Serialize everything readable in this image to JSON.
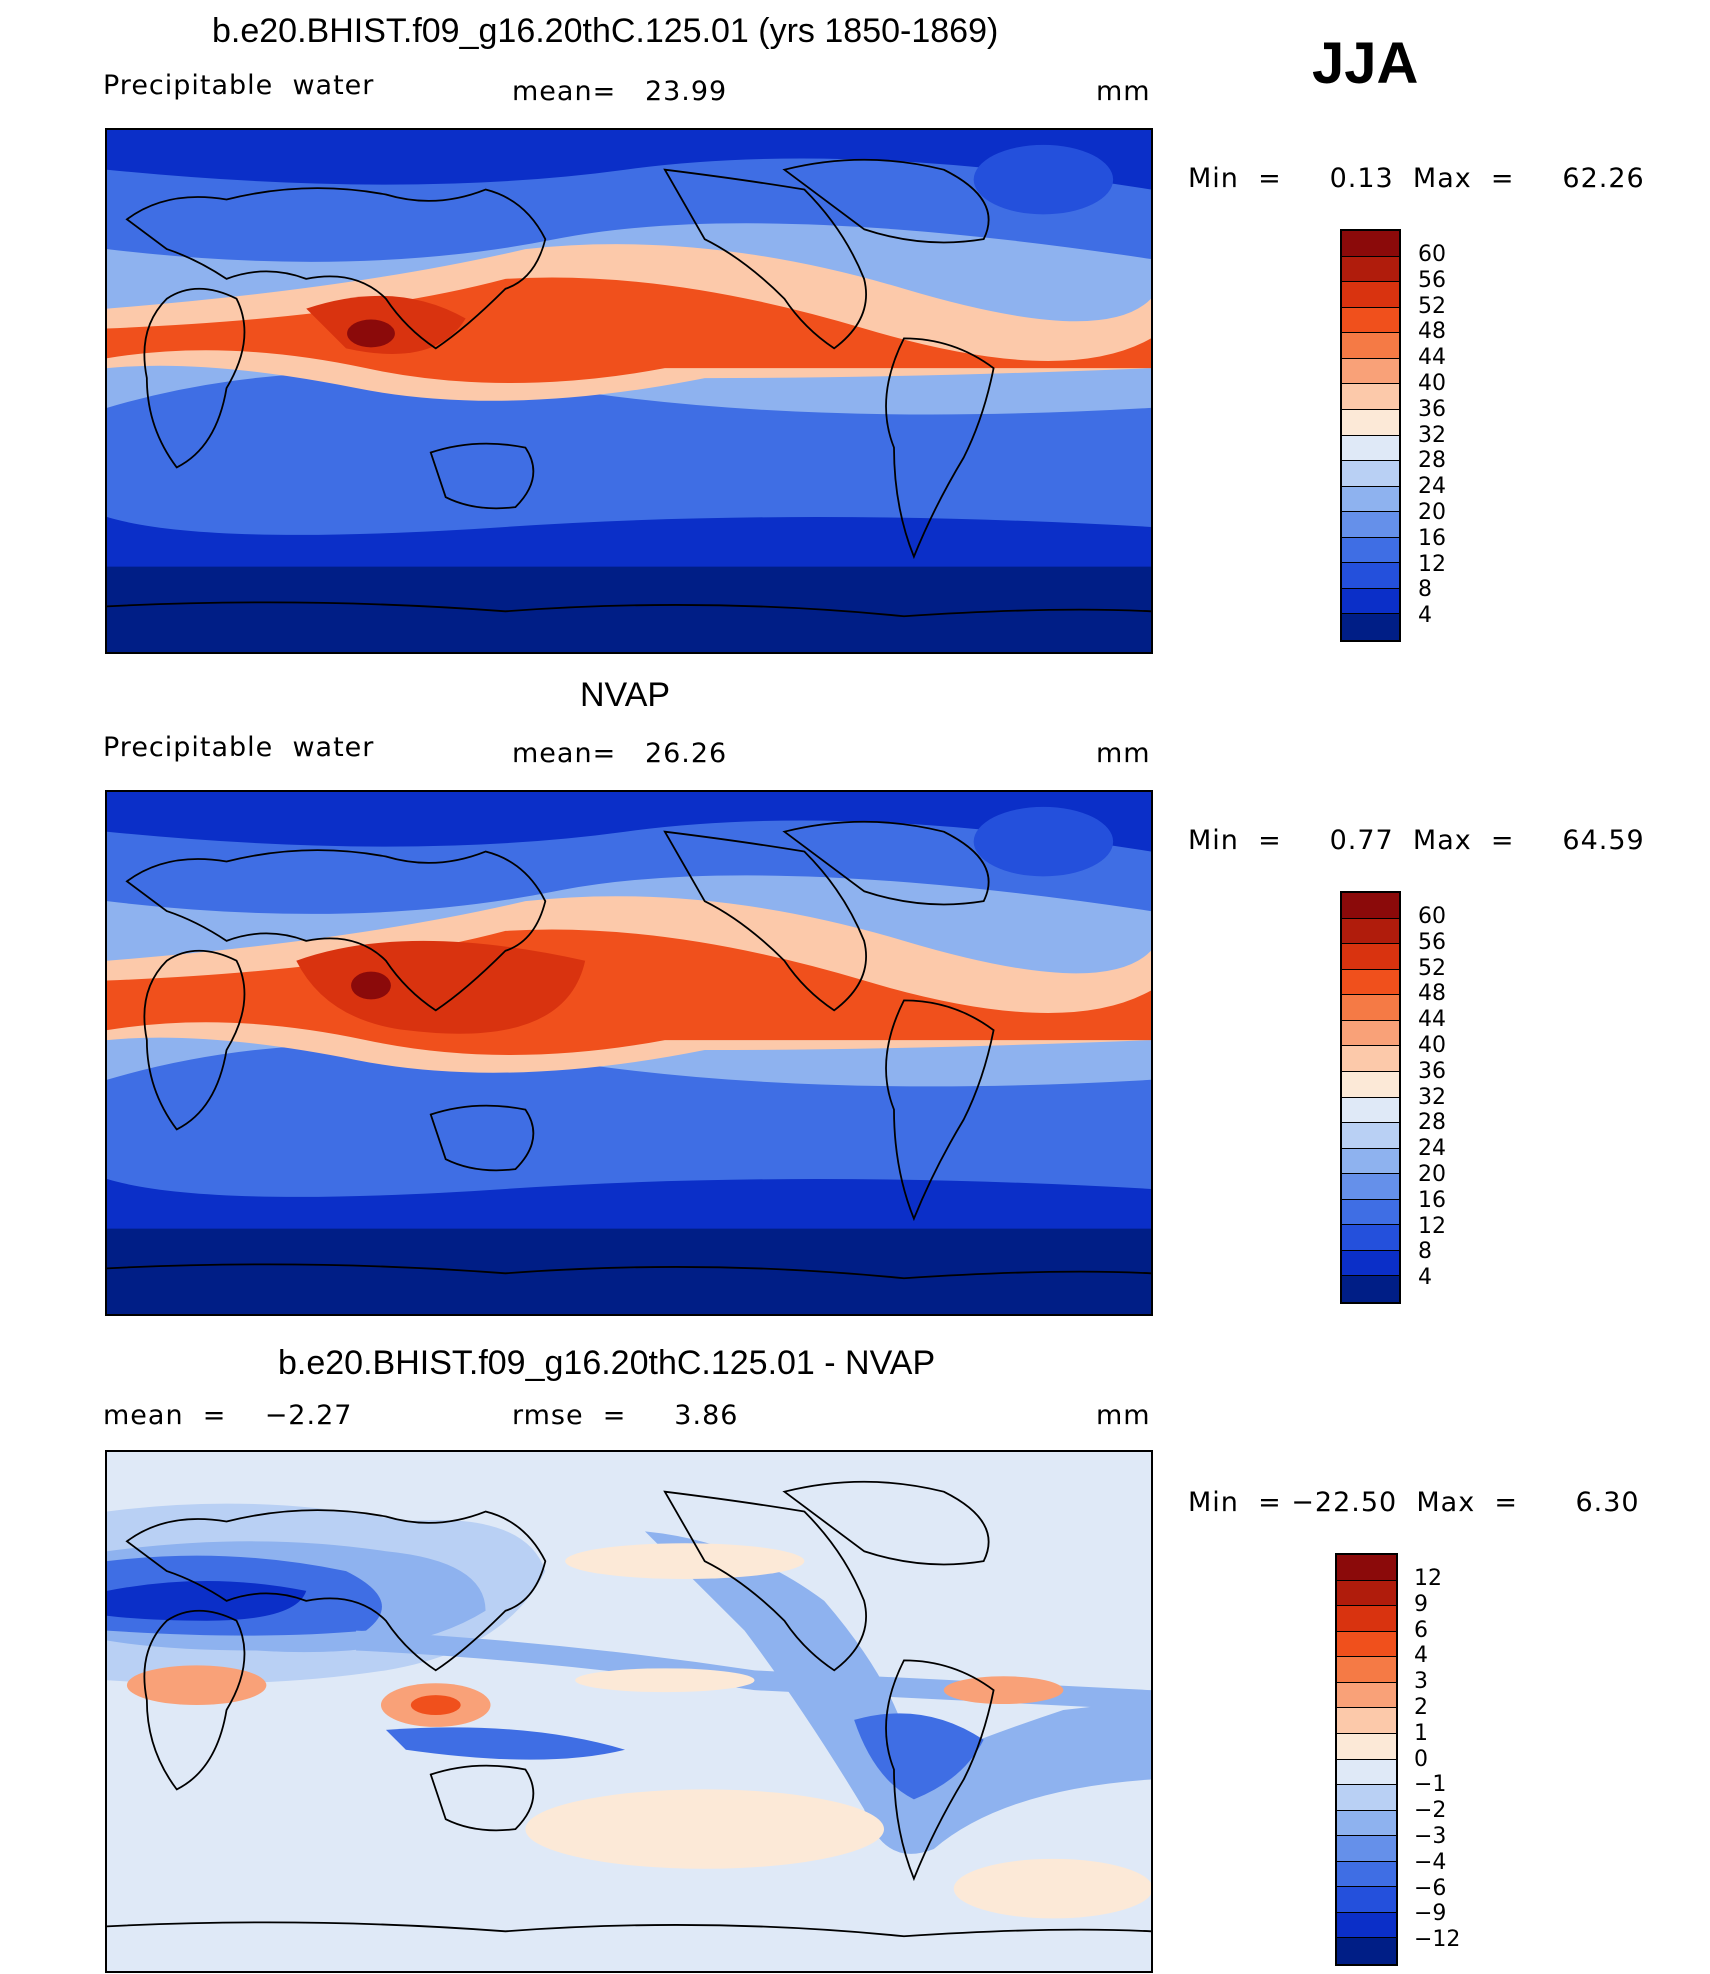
{
  "season_label": "JJA",
  "panels": [
    {
      "title": "b.e20.BHIST.f09_g16.20thC.125.01 (yrs 1850-1869)",
      "left_label": "Precipitable  water",
      "center_label": "mean=   23.99",
      "units": "mm",
      "minmax": "Min  =     0.13  Max  =     62.26",
      "colorbar_ticks": [
        "60",
        "56",
        "52",
        "48",
        "44",
        "40",
        "36",
        "32",
        "28",
        "24",
        "20",
        "16",
        "12",
        "8",
        "4"
      ],
      "colorbar_colors": [
        "#8b0a0a",
        "#b01c0c",
        "#d9330f",
        "#f0501c",
        "#f57a45",
        "#f9a178",
        "#fcc9aa",
        "#fce9d7",
        "#dfe9f7",
        "#b9d0f4",
        "#8eb2ef",
        "#6590ea",
        "#3f6ee4",
        "#2450dc",
        "#0b2fc8",
        "#001e86"
      ],
      "map_colors": {
        "polar": "#001e86",
        "cold": "#0b2fc8",
        "mid": "#3f6ee4",
        "mild": "#8eb2ef",
        "warm": "#fcc9aa",
        "hot": "#f0501c",
        "hotter": "#d9330f",
        "peak": "#8b0a0a",
        "ice": "#2450dc"
      }
    },
    {
      "title": "NVAP",
      "left_label": "Precipitable  water",
      "center_label": "mean=   26.26",
      "units": "mm",
      "minmax": "Min  =     0.77  Max  =     64.59",
      "colorbar_ticks": [
        "60",
        "56",
        "52",
        "48",
        "44",
        "40",
        "36",
        "32",
        "28",
        "24",
        "20",
        "16",
        "12",
        "8",
        "4"
      ],
      "colorbar_colors": [
        "#8b0a0a",
        "#b01c0c",
        "#d9330f",
        "#f0501c",
        "#f57a45",
        "#f9a178",
        "#fcc9aa",
        "#fce9d7",
        "#dfe9f7",
        "#b9d0f4",
        "#8eb2ef",
        "#6590ea",
        "#3f6ee4",
        "#2450dc",
        "#0b2fc8",
        "#001e86"
      ],
      "map_colors": {
        "polar": "#001e86",
        "cold": "#0b2fc8",
        "mid": "#3f6ee4",
        "mild": "#8eb2ef",
        "warm": "#fcc9aa",
        "hot": "#f0501c",
        "hotter": "#d9330f",
        "peak": "#8b0a0a",
        "ice": "#2450dc"
      }
    },
    {
      "title": "b.e20.BHIST.f09_g16.20thC.125.01 - NVAP",
      "left_label": "mean  =    −2.27",
      "center_label": "rmse  =     3.86",
      "units": "mm",
      "minmax": "Min  = −22.50  Max  =      6.30",
      "colorbar_ticks": [
        "12",
        "9",
        "6",
        "4",
        "3",
        "2",
        "1",
        "0",
        "−1",
        "−2",
        "−3",
        "−4",
        "−6",
        "−9",
        "−12"
      ],
      "colorbar_colors": [
        "#8b0a0a",
        "#b01c0c",
        "#d9330f",
        "#f0501c",
        "#f57a45",
        "#f9a178",
        "#fcc9aa",
        "#fce9d7",
        "#dfe9f7",
        "#b9d0f4",
        "#8eb2ef",
        "#6590ea",
        "#3f6ee4",
        "#2450dc",
        "#0b2fc8",
        "#001e86"
      ],
      "map_colors": {
        "background": "#dfe9f7",
        "neg1": "#b9d0f4",
        "neg2": "#8eb2ef",
        "neg3": "#3f6ee4",
        "neg4": "#0b2fc8",
        "pos1": "#fce9d7",
        "pos2": "#f9a178",
        "pos3": "#f0501c"
      }
    }
  ]
}
